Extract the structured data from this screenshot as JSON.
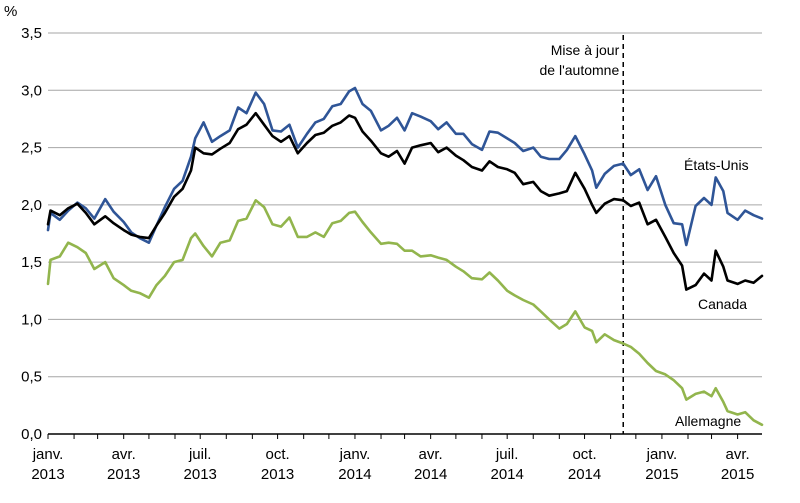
{
  "chart_data": {
    "type": "line",
    "ylabel": "%",
    "ylim": [
      0,
      3.5
    ],
    "yticks": [
      "0,0",
      "0,5",
      "1,0",
      "1,5",
      "2,0",
      "2,5",
      "3,0",
      "3,5"
    ],
    "yticks_values": [
      0,
      0.5,
      1.0,
      1.5,
      2.0,
      2.5,
      3.0,
      3.5
    ],
    "xlim": [
      "2013-01-01",
      "2015-04-30"
    ],
    "xticks": [
      {
        "date": "2013-01-01",
        "line1": "janv.",
        "line2": "2013"
      },
      {
        "date": "2013-04-01",
        "line1": "avr.",
        "line2": "2013"
      },
      {
        "date": "2013-07-01",
        "line1": "juil.",
        "line2": "2013"
      },
      {
        "date": "2013-10-01",
        "line1": "oct.",
        "line2": "2013"
      },
      {
        "date": "2014-01-01",
        "line1": "janv.",
        "line2": "2014"
      },
      {
        "date": "2014-04-01",
        "line1": "avr.",
        "line2": "2014"
      },
      {
        "date": "2014-07-01",
        "line1": "juil.",
        "line2": "2014"
      },
      {
        "date": "2014-10-01",
        "line1": "oct.",
        "line2": "2014"
      },
      {
        "date": "2015-01-01",
        "line1": "janv.",
        "line2": "2015"
      },
      {
        "date": "2015-04-01",
        "line1": "avr.",
        "line2": "2015"
      }
    ],
    "grid": true,
    "annotation": {
      "date": "2014-11-16",
      "line1": "Mise à jour",
      "line2": "de l'automne"
    },
    "series": [
      {
        "name": "États-Unis",
        "color": "#2f5597",
        "points": [
          [
            "2013-01-01",
            1.78
          ],
          [
            "2013-01-04",
            1.93
          ],
          [
            "2013-01-15",
            1.87
          ],
          [
            "2013-01-25",
            1.95
          ],
          [
            "2013-02-05",
            2.02
          ],
          [
            "2013-02-15",
            1.97
          ],
          [
            "2013-02-25",
            1.88
          ],
          [
            "2013-03-10",
            2.05
          ],
          [
            "2013-03-20",
            1.94
          ],
          [
            "2013-04-01",
            1.85
          ],
          [
            "2013-04-10",
            1.76
          ],
          [
            "2013-04-20",
            1.71
          ],
          [
            "2013-05-01",
            1.67
          ],
          [
            "2013-05-10",
            1.82
          ],
          [
            "2013-05-20",
            1.98
          ],
          [
            "2013-05-31",
            2.14
          ],
          [
            "2013-06-10",
            2.21
          ],
          [
            "2013-06-20",
            2.42
          ],
          [
            "2013-06-25",
            2.58
          ],
          [
            "2013-07-05",
            2.72
          ],
          [
            "2013-07-15",
            2.55
          ],
          [
            "2013-07-25",
            2.6
          ],
          [
            "2013-08-05",
            2.65
          ],
          [
            "2013-08-15",
            2.85
          ],
          [
            "2013-08-25",
            2.8
          ],
          [
            "2013-09-05",
            2.98
          ],
          [
            "2013-09-15",
            2.88
          ],
          [
            "2013-09-25",
            2.65
          ],
          [
            "2013-10-05",
            2.64
          ],
          [
            "2013-10-15",
            2.7
          ],
          [
            "2013-10-25",
            2.5
          ],
          [
            "2013-11-05",
            2.62
          ],
          [
            "2013-11-15",
            2.72
          ],
          [
            "2013-11-25",
            2.75
          ],
          [
            "2013-12-05",
            2.86
          ],
          [
            "2013-12-15",
            2.88
          ],
          [
            "2013-12-25",
            2.99
          ],
          [
            "2014-01-01",
            3.02
          ],
          [
            "2014-01-10",
            2.88
          ],
          [
            "2014-01-20",
            2.82
          ],
          [
            "2014-02-01",
            2.65
          ],
          [
            "2014-02-10",
            2.69
          ],
          [
            "2014-02-20",
            2.76
          ],
          [
            "2014-03-01",
            2.65
          ],
          [
            "2014-03-10",
            2.8
          ],
          [
            "2014-03-20",
            2.77
          ],
          [
            "2014-04-01",
            2.73
          ],
          [
            "2014-04-10",
            2.66
          ],
          [
            "2014-04-20",
            2.72
          ],
          [
            "2014-05-01",
            2.62
          ],
          [
            "2014-05-10",
            2.62
          ],
          [
            "2014-05-20",
            2.53
          ],
          [
            "2014-06-01",
            2.48
          ],
          [
            "2014-06-10",
            2.64
          ],
          [
            "2014-06-20",
            2.63
          ],
          [
            "2014-07-01",
            2.58
          ],
          [
            "2014-07-10",
            2.54
          ],
          [
            "2014-07-20",
            2.47
          ],
          [
            "2014-08-01",
            2.5
          ],
          [
            "2014-08-10",
            2.42
          ],
          [
            "2014-08-20",
            2.4
          ],
          [
            "2014-09-01",
            2.4
          ],
          [
            "2014-09-10",
            2.48
          ],
          [
            "2014-09-20",
            2.6
          ],
          [
            "2014-10-01",
            2.44
          ],
          [
            "2014-10-10",
            2.3
          ],
          [
            "2014-10-15",
            2.15
          ],
          [
            "2014-10-25",
            2.27
          ],
          [
            "2014-11-05",
            2.34
          ],
          [
            "2014-11-16",
            2.36
          ],
          [
            "2014-11-25",
            2.26
          ],
          [
            "2014-12-05",
            2.31
          ],
          [
            "2014-12-15",
            2.13
          ],
          [
            "2014-12-25",
            2.25
          ],
          [
            "2015-01-05",
            2.0
          ],
          [
            "2015-01-15",
            1.84
          ],
          [
            "2015-01-25",
            1.83
          ],
          [
            "2015-01-30",
            1.65
          ],
          [
            "2015-02-10",
            1.99
          ],
          [
            "2015-02-20",
            2.06
          ],
          [
            "2015-03-01",
            2.0
          ],
          [
            "2015-03-06",
            2.24
          ],
          [
            "2015-03-15",
            2.12
          ],
          [
            "2015-03-20",
            1.93
          ],
          [
            "2015-04-01",
            1.87
          ],
          [
            "2015-04-10",
            1.95
          ],
          [
            "2015-04-20",
            1.91
          ],
          [
            "2015-04-30",
            1.88
          ]
        ]
      },
      {
        "name": "Canada",
        "color": "#000000",
        "points": [
          [
            "2013-01-01",
            1.83
          ],
          [
            "2013-01-04",
            1.95
          ],
          [
            "2013-01-15",
            1.91
          ],
          [
            "2013-01-25",
            1.97
          ],
          [
            "2013-02-05",
            2.01
          ],
          [
            "2013-02-15",
            1.93
          ],
          [
            "2013-02-25",
            1.83
          ],
          [
            "2013-03-10",
            1.9
          ],
          [
            "2013-03-20",
            1.84
          ],
          [
            "2013-04-01",
            1.78
          ],
          [
            "2013-04-10",
            1.74
          ],
          [
            "2013-04-20",
            1.72
          ],
          [
            "2013-05-01",
            1.71
          ],
          [
            "2013-05-10",
            1.82
          ],
          [
            "2013-05-20",
            1.93
          ],
          [
            "2013-05-31",
            2.07
          ],
          [
            "2013-06-10",
            2.14
          ],
          [
            "2013-06-20",
            2.3
          ],
          [
            "2013-06-25",
            2.5
          ],
          [
            "2013-07-05",
            2.45
          ],
          [
            "2013-07-15",
            2.44
          ],
          [
            "2013-07-25",
            2.49
          ],
          [
            "2013-08-05",
            2.54
          ],
          [
            "2013-08-15",
            2.66
          ],
          [
            "2013-08-25",
            2.7
          ],
          [
            "2013-09-05",
            2.8
          ],
          [
            "2013-09-15",
            2.7
          ],
          [
            "2013-09-25",
            2.6
          ],
          [
            "2013-10-05",
            2.55
          ],
          [
            "2013-10-15",
            2.6
          ],
          [
            "2013-10-25",
            2.45
          ],
          [
            "2013-11-05",
            2.54
          ],
          [
            "2013-11-15",
            2.61
          ],
          [
            "2013-11-25",
            2.63
          ],
          [
            "2013-12-05",
            2.69
          ],
          [
            "2013-12-15",
            2.72
          ],
          [
            "2013-12-25",
            2.78
          ],
          [
            "2014-01-01",
            2.76
          ],
          [
            "2014-01-10",
            2.64
          ],
          [
            "2014-01-20",
            2.56
          ],
          [
            "2014-02-01",
            2.45
          ],
          [
            "2014-02-10",
            2.42
          ],
          [
            "2014-02-20",
            2.47
          ],
          [
            "2014-03-01",
            2.36
          ],
          [
            "2014-03-10",
            2.5
          ],
          [
            "2014-03-20",
            2.52
          ],
          [
            "2014-04-01",
            2.54
          ],
          [
            "2014-04-10",
            2.46
          ],
          [
            "2014-04-20",
            2.5
          ],
          [
            "2014-05-01",
            2.43
          ],
          [
            "2014-05-10",
            2.39
          ],
          [
            "2014-05-20",
            2.33
          ],
          [
            "2014-06-01",
            2.3
          ],
          [
            "2014-06-10",
            2.38
          ],
          [
            "2014-06-20",
            2.33
          ],
          [
            "2014-07-01",
            2.31
          ],
          [
            "2014-07-10",
            2.28
          ],
          [
            "2014-07-20",
            2.18
          ],
          [
            "2014-08-01",
            2.2
          ],
          [
            "2014-08-10",
            2.12
          ],
          [
            "2014-08-20",
            2.08
          ],
          [
            "2014-09-01",
            2.1
          ],
          [
            "2014-09-10",
            2.12
          ],
          [
            "2014-09-20",
            2.28
          ],
          [
            "2014-10-01",
            2.14
          ],
          [
            "2014-10-10",
            2.0
          ],
          [
            "2014-10-15",
            1.93
          ],
          [
            "2014-10-25",
            2.01
          ],
          [
            "2014-11-05",
            2.05
          ],
          [
            "2014-11-16",
            2.04
          ],
          [
            "2014-11-25",
            1.99
          ],
          [
            "2014-12-05",
            2.02
          ],
          [
            "2014-12-15",
            1.83
          ],
          [
            "2014-12-25",
            1.87
          ],
          [
            "2015-01-05",
            1.72
          ],
          [
            "2015-01-15",
            1.58
          ],
          [
            "2015-01-25",
            1.47
          ],
          [
            "2015-01-30",
            1.26
          ],
          [
            "2015-02-10",
            1.3
          ],
          [
            "2015-02-20",
            1.4
          ],
          [
            "2015-03-01",
            1.34
          ],
          [
            "2015-03-06",
            1.6
          ],
          [
            "2015-03-15",
            1.46
          ],
          [
            "2015-03-20",
            1.34
          ],
          [
            "2015-04-01",
            1.31
          ],
          [
            "2015-04-10",
            1.34
          ],
          [
            "2015-04-20",
            1.32
          ],
          [
            "2015-04-30",
            1.38
          ]
        ]
      },
      {
        "name": "Allemagne",
        "color": "#92b54d",
        "points": [
          [
            "2013-01-01",
            1.31
          ],
          [
            "2013-01-04",
            1.52
          ],
          [
            "2013-01-15",
            1.55
          ],
          [
            "2013-01-25",
            1.67
          ],
          [
            "2013-02-05",
            1.63
          ],
          [
            "2013-02-15",
            1.58
          ],
          [
            "2013-02-25",
            1.44
          ],
          [
            "2013-03-10",
            1.5
          ],
          [
            "2013-03-20",
            1.36
          ],
          [
            "2013-04-01",
            1.3
          ],
          [
            "2013-04-10",
            1.25
          ],
          [
            "2013-04-20",
            1.23
          ],
          [
            "2013-05-01",
            1.19
          ],
          [
            "2013-05-10",
            1.3
          ],
          [
            "2013-05-20",
            1.38
          ],
          [
            "2013-05-31",
            1.5
          ],
          [
            "2013-06-10",
            1.52
          ],
          [
            "2013-06-20",
            1.71
          ],
          [
            "2013-06-25",
            1.75
          ],
          [
            "2013-07-05",
            1.64
          ],
          [
            "2013-07-15",
            1.55
          ],
          [
            "2013-07-25",
            1.67
          ],
          [
            "2013-08-05",
            1.69
          ],
          [
            "2013-08-15",
            1.86
          ],
          [
            "2013-08-25",
            1.88
          ],
          [
            "2013-09-05",
            2.04
          ],
          [
            "2013-09-15",
            1.98
          ],
          [
            "2013-09-25",
            1.83
          ],
          [
            "2013-10-05",
            1.81
          ],
          [
            "2013-10-15",
            1.89
          ],
          [
            "2013-10-25",
            1.72
          ],
          [
            "2013-11-05",
            1.72
          ],
          [
            "2013-11-15",
            1.76
          ],
          [
            "2013-11-25",
            1.72
          ],
          [
            "2013-12-05",
            1.84
          ],
          [
            "2013-12-15",
            1.86
          ],
          [
            "2013-12-25",
            1.93
          ],
          [
            "2014-01-01",
            1.94
          ],
          [
            "2014-01-10",
            1.85
          ],
          [
            "2014-01-20",
            1.76
          ],
          [
            "2014-02-01",
            1.66
          ],
          [
            "2014-02-10",
            1.67
          ],
          [
            "2014-02-20",
            1.66
          ],
          [
            "2014-03-01",
            1.6
          ],
          [
            "2014-03-10",
            1.6
          ],
          [
            "2014-03-20",
            1.55
          ],
          [
            "2014-04-01",
            1.56
          ],
          [
            "2014-04-10",
            1.54
          ],
          [
            "2014-04-20",
            1.52
          ],
          [
            "2014-05-01",
            1.46
          ],
          [
            "2014-05-10",
            1.42
          ],
          [
            "2014-05-20",
            1.36
          ],
          [
            "2014-06-01",
            1.35
          ],
          [
            "2014-06-10",
            1.41
          ],
          [
            "2014-06-20",
            1.34
          ],
          [
            "2014-07-01",
            1.25
          ],
          [
            "2014-07-10",
            1.21
          ],
          [
            "2014-07-20",
            1.17
          ],
          [
            "2014-08-01",
            1.13
          ],
          [
            "2014-08-10",
            1.07
          ],
          [
            "2014-08-20",
            1.0
          ],
          [
            "2014-09-01",
            0.92
          ],
          [
            "2014-09-10",
            0.96
          ],
          [
            "2014-09-20",
            1.07
          ],
          [
            "2014-10-01",
            0.93
          ],
          [
            "2014-10-10",
            0.9
          ],
          [
            "2014-10-15",
            0.8
          ],
          [
            "2014-10-25",
            0.87
          ],
          [
            "2014-11-05",
            0.82
          ],
          [
            "2014-11-16",
            0.79
          ],
          [
            "2014-11-25",
            0.76
          ],
          [
            "2014-12-05",
            0.7
          ],
          [
            "2014-12-15",
            0.62
          ],
          [
            "2014-12-25",
            0.55
          ],
          [
            "2015-01-05",
            0.52
          ],
          [
            "2015-01-15",
            0.47
          ],
          [
            "2015-01-25",
            0.4
          ],
          [
            "2015-01-30",
            0.3
          ],
          [
            "2015-02-10",
            0.35
          ],
          [
            "2015-02-20",
            0.37
          ],
          [
            "2015-03-01",
            0.33
          ],
          [
            "2015-03-06",
            0.4
          ],
          [
            "2015-03-15",
            0.28
          ],
          [
            "2015-03-20",
            0.2
          ],
          [
            "2015-04-01",
            0.17
          ],
          [
            "2015-04-10",
            0.19
          ],
          [
            "2015-04-20",
            0.12
          ],
          [
            "2015-04-30",
            0.08
          ]
        ]
      }
    ]
  }
}
